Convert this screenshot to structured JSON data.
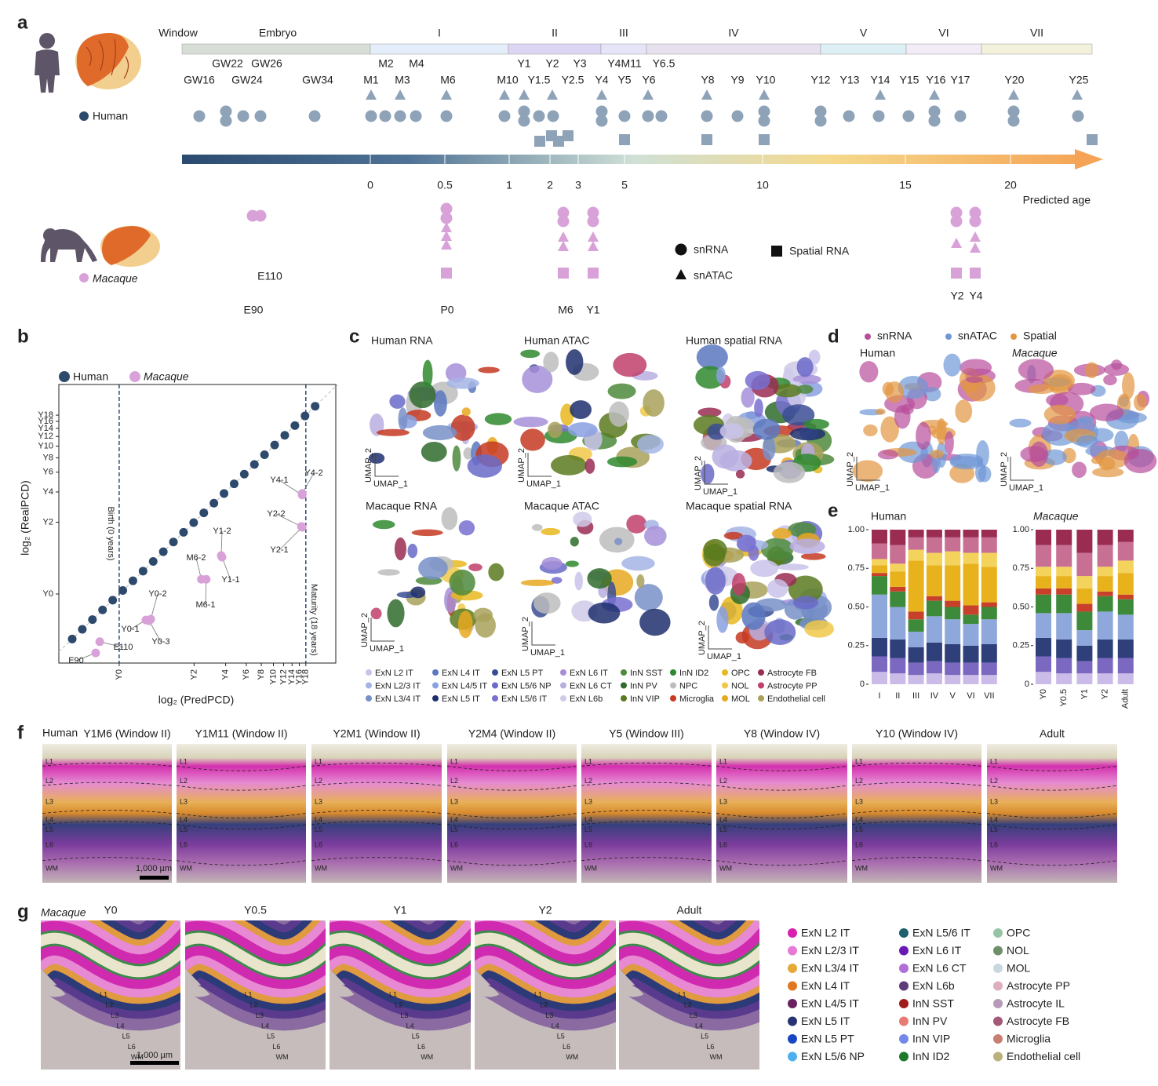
{
  "panel_labels": [
    "a",
    "b",
    "c",
    "d",
    "e",
    "f",
    "g"
  ],
  "panel_a": {
    "window_header": "Window",
    "windows": [
      "Embryo",
      "I",
      "II",
      "III",
      "IV",
      "V",
      "VI",
      "VII"
    ],
    "window_colors": [
      "#d7ded6",
      "#e4eefa",
      "#dcd5f3",
      "#e5e4f8",
      "#e7e0ef",
      "#dcf0f5",
      "#f1ecf6",
      "#f3f0db"
    ],
    "sample_labels_top": [
      "GW22",
      "GW26",
      "M2",
      "M4",
      "Y1",
      "Y2",
      "Y3",
      "Y4M11",
      "Y6.5"
    ],
    "sample_labels": [
      "GW16",
      "GW24",
      "GW34",
      "M1",
      "M3",
      "M6",
      "M10",
      "Y1.5",
      "Y2.5",
      "Y4",
      "Y5",
      "Y6",
      "Y8",
      "Y9",
      "Y10",
      "Y12",
      "Y13",
      "Y14",
      "Y15",
      "Y16",
      "Y17",
      "Y20",
      "Y25"
    ],
    "age_ticks": [
      0,
      0.5,
      1,
      2,
      3,
      5,
      10,
      15,
      20
    ],
    "age_axis_label": "Predicted age",
    "human": "Human",
    "macaque": "Macaque",
    "macaque_labels": [
      "E110",
      "E90",
      "P0",
      "M6",
      "Y1",
      "Y2",
      "Y4"
    ],
    "legend": [
      "snRNA",
      "snATAC",
      "Spatial RNA"
    ],
    "human_color": "#2d4a6c",
    "human_marker_color": "#8ea2b8",
    "macaque_color": "#d8a2d8"
  },
  "panel_b": {
    "legend": [
      "Human",
      "Macaque"
    ],
    "xlabel": "log₂ (PredPCD)",
    "ylabel": "log₂ (RealPCD)",
    "xlim": [
      6.64,
      13.48
    ],
    "ylim": [
      6.35,
      13.53
    ],
    "xticks": [
      {
        "value": 8.13,
        "label": "Y0"
      },
      {
        "value": 9.98,
        "label": "Y2"
      },
      {
        "value": 10.76,
        "label": "Y4"
      },
      {
        "value": 11.27,
        "label": "Y6"
      },
      {
        "value": 11.64,
        "label": "Y8"
      },
      {
        "value": 11.94,
        "label": "Y10"
      },
      {
        "value": 12.19,
        "label": "Y12"
      },
      {
        "value": 12.4,
        "label": "Y14"
      },
      {
        "value": 12.58,
        "label": "Y16"
      },
      {
        "value": 12.74,
        "label": "Y18"
      }
    ],
    "yticks": [
      {
        "value": 8.13,
        "label": "Y0"
      },
      {
        "value": 9.98,
        "label": "Y2"
      },
      {
        "value": 10.76,
        "label": "Y4"
      },
      {
        "value": 11.27,
        "label": "Y6"
      },
      {
        "value": 11.64,
        "label": "Y8"
      },
      {
        "value": 11.94,
        "label": "Y10"
      },
      {
        "value": 12.19,
        "label": "Y12"
      },
      {
        "value": 12.4,
        "label": "Y14"
      },
      {
        "value": 12.58,
        "label": "Y16"
      },
      {
        "value": 12.74,
        "label": "Y18"
      }
    ],
    "birth_x": 8.13,
    "birth_label": "Birth (0 years)",
    "maturity_x": 12.74,
    "maturity_label": "Maturity (18 years)",
    "human_points": {
      "x": [
        6.97,
        7.22,
        7.47,
        7.72,
        7.97,
        8.22,
        8.47,
        8.72,
        8.97,
        9.22,
        9.47,
        9.72,
        9.97,
        10.22,
        10.47,
        10.72,
        10.97,
        11.22,
        11.47,
        11.72,
        11.97,
        12.22,
        12.47,
        12.72,
        12.97
      ],
      "y": [
        6.97,
        7.22,
        7.47,
        7.72,
        7.97,
        8.22,
        8.47,
        8.72,
        8.97,
        9.22,
        9.47,
        9.72,
        9.97,
        10.22,
        10.47,
        10.72,
        10.97,
        11.22,
        11.47,
        11.72,
        11.97,
        12.22,
        12.47,
        12.72,
        12.97
      ]
    },
    "macaque_points": {
      "labels": [
        "E90",
        "E110",
        "Y0-1",
        "Y0-2",
        "Y0-3",
        "M6-1",
        "M6-2",
        "Y1-1",
        "Y1-2",
        "Y2-1",
        "Y2-2",
        "Y4-1",
        "Y4-2"
      ],
      "x": [
        7.55,
        7.65,
        8.79,
        8.91,
        8.87,
        10.28,
        10.16,
        10.67,
        10.65,
        12.65,
        12.63,
        12.65,
        12.65
      ],
      "y": [
        6.61,
        6.9,
        7.46,
        7.48,
        7.44,
        8.51,
        8.51,
        9.08,
        9.12,
        9.85,
        9.87,
        10.68,
        10.72
      ]
    }
  },
  "panel_c": {
    "titles": [
      "Human RNA",
      "Human ATAC",
      "Human spatial RNA",
      "Macaque RNA",
      "Macaque ATAC",
      "Macaque spatial RNA"
    ],
    "umap_x": "UMAP_1",
    "umap_y": "UMAP_2",
    "legend": {
      "names": [
        "ExN L2 IT",
        "ExN L4 IT",
        "ExN L5 PT",
        "ExN L6 IT",
        "InN SST",
        "InN ID2",
        "OPC",
        "Astrocyte FB",
        "ExN L2/3 IT",
        "ExN L4/5 IT",
        "ExN L5/6 NP",
        "ExN L6 CT",
        "InN PV",
        "NPC",
        "NOL",
        "Astrocyte PP",
        "ExN L3/4 IT",
        "ExN L5 IT",
        "ExN L5/6 IT",
        "ExN L6b",
        "InN VIP",
        "Microglia",
        "MOL",
        "Endothelial cell"
      ],
      "colors": [
        "#c9c3ea",
        "#5a78c0",
        "#3a4e94",
        "#a68fd8",
        "#4e8a3c",
        "#2f8a2f",
        "#e8b820",
        "#9a2c52",
        "#a4b4e4",
        "#8aa0e0",
        "#6a6ac8",
        "#b9aee0",
        "#2f6b2c",
        "#bdbdbd",
        "#f0c848",
        "#c0406a",
        "#7890c8",
        "#1f2f6e",
        "#7870d0",
        "#cfcae8",
        "#5a7a1f",
        "#c63a22",
        "#e7a820",
        "#a9a15a"
      ]
    }
  },
  "panel_d": {
    "legend": [
      "snRNA",
      "snATAC",
      "Spatial"
    ],
    "colors": [
      "#b84e9b",
      "#6f97d6",
      "#e39640"
    ],
    "titles": [
      "Human",
      "Macaque"
    ]
  },
  "panel_e": {
    "titles": [
      "Human",
      "Macaque"
    ],
    "ylim": [
      0,
      1
    ],
    "yticks": [
      0,
      0.25,
      {
        "value": 0.5,
        "label": "0.50"
      },
      {
        "value": 0.75,
        "label": "0.75"
      },
      {
        "value": 1,
        "label": "1.00"
      }
    ],
    "colors": [
      "#cbbbe8",
      "#7b68c0",
      "#2e3f7a",
      "#8ea8dc",
      "#3d8a3a",
      "#c9402a",
      "#e8b21d",
      "#f3d35b",
      "#c86f94",
      "#9a2c52"
    ],
    "human": {
      "categories": [
        "I",
        "II",
        "III",
        "IV",
        "V",
        "VI",
        "VII"
      ],
      "values": [
        [
          0.08,
          0.1,
          0.12,
          0.28,
          0.12,
          0.02,
          0.05,
          0.04,
          0.1,
          0.09
        ],
        [
          0.07,
          0.1,
          0.12,
          0.21,
          0.1,
          0.03,
          0.1,
          0.05,
          0.12,
          0.1
        ],
        [
          0.06,
          0.08,
          0.1,
          0.1,
          0.08,
          0.05,
          0.33,
          0.07,
          0.08,
          0.05
        ],
        [
          0.07,
          0.08,
          0.12,
          0.17,
          0.1,
          0.03,
          0.2,
          0.08,
          0.1,
          0.05
        ],
        [
          0.06,
          0.08,
          0.12,
          0.16,
          0.08,
          0.04,
          0.23,
          0.09,
          0.09,
          0.05
        ],
        [
          0.06,
          0.08,
          0.11,
          0.14,
          0.06,
          0.06,
          0.27,
          0.07,
          0.1,
          0.05
        ],
        [
          0.06,
          0.08,
          0.12,
          0.16,
          0.08,
          0.03,
          0.23,
          0.09,
          0.1,
          0.05
        ]
      ]
    },
    "macaque": {
      "categories": [
        "Y0",
        "Y0.5",
        "Y1",
        "Y2",
        "Adult"
      ],
      "values": [
        [
          0.08,
          0.1,
          0.12,
          0.16,
          0.12,
          0.04,
          0.08,
          0.06,
          0.14,
          0.1
        ],
        [
          0.07,
          0.1,
          0.12,
          0.17,
          0.12,
          0.04,
          0.08,
          0.06,
          0.14,
          0.1
        ],
        [
          0.07,
          0.08,
          0.1,
          0.1,
          0.12,
          0.05,
          0.1,
          0.08,
          0.15,
          0.15
        ],
        [
          0.07,
          0.1,
          0.12,
          0.18,
          0.1,
          0.03,
          0.1,
          0.06,
          0.14,
          0.1
        ],
        [
          0.07,
          0.1,
          0.12,
          0.16,
          0.1,
          0.03,
          0.14,
          0.08,
          0.12,
          0.08
        ]
      ]
    }
  },
  "panel_f": {
    "species": "Human",
    "titles": [
      "Y1M6 (Window II)",
      "Y1M11 (Window II)",
      "Y2M1 (Window II)",
      "Y2M4 (Window II)",
      "Y5 (Window III)",
      "Y8 (Window IV)",
      "Y10 (Window IV)",
      "Adult"
    ],
    "layers": [
      "L1",
      "L2",
      "L3",
      "L4",
      "L5",
      "L6",
      "WM"
    ],
    "scale_bar": "1,000 µm"
  },
  "panel_g": {
    "species": "Macaque",
    "titles": [
      "Y0",
      "Y0.5",
      "Y1",
      "Y2",
      "Adult"
    ],
    "legend": {
      "names": [
        "ExN L2 IT",
        "ExN L2/3 IT",
        "ExN L3/4 IT",
        "ExN L4 IT",
        "ExN L4/5 IT",
        "ExN L5 IT",
        "ExN L5 PT",
        "ExN L5/6 NP",
        "ExN L5/6 IT",
        "ExN L6 IT",
        "ExN L6 CT",
        "ExN L6b",
        "InN SST",
        "InN PV",
        "InN VIP",
        "InN ID2",
        "OPC",
        "NOL",
        "MOL",
        "Astrocyte PP",
        "Astrocyte IL",
        "Astrocyte FB",
        "Microglia",
        "Endothelial cell"
      ],
      "colors": [
        "#d81fb0",
        "#e77ad6",
        "#e5a93a",
        "#e0771f",
        "#6b2060",
        "#283375",
        "#1847c2",
        "#4fb0ee",
        "#1f5f6e",
        "#6b19b5",
        "#b070d8",
        "#5e3c7a",
        "#a01c1c",
        "#e87a74",
        "#7388e8",
        "#1d7a2a",
        "#98c4a6",
        "#6f8f6a",
        "#c8d8de",
        "#dfaebd",
        "#b89ab8",
        "#a35a78",
        "#c87f72",
        "#b9b27c"
      ]
    }
  }
}
